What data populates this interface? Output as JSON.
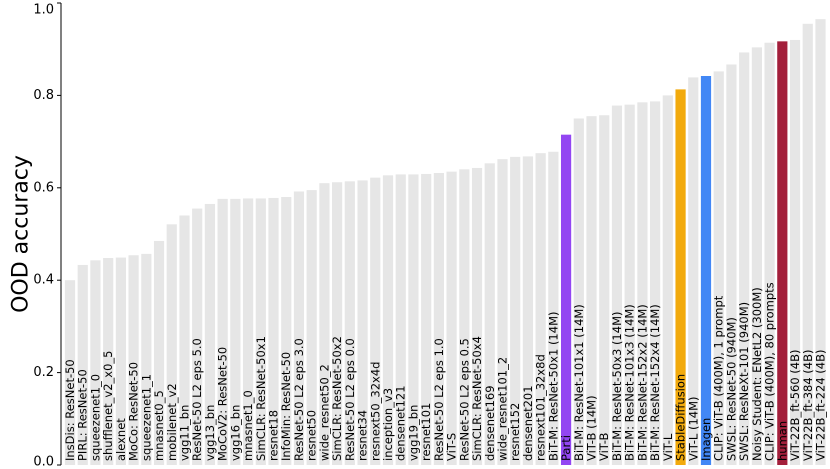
{
  "chart_data": {
    "type": "bar",
    "title": "",
    "xlabel": "",
    "ylabel": "OOD accuracy",
    "ylim": [
      0.0,
      1.0
    ],
    "yticks": [
      "0.0",
      "0.2",
      "0.4",
      "0.6",
      "0.8",
      "1.0"
    ],
    "grid": false,
    "legend": "none",
    "default_color": "#e6e6e6",
    "highlight_colors": {
      "Parti": "#9346f2",
      "StableDiffusion": "#f2aa0c",
      "Imagen": "#4287f5",
      "human": "#a31f3b"
    },
    "categories": [
      "InsDis: ResNet-50",
      "PIRL: ResNet-50",
      "squeezenet1_0",
      "shufflenet_v2_x0_5",
      "alexnet",
      "MoCo: ResNet-50",
      "squeezenet1_1",
      "mnasnet0_5",
      "mobilenet_v2",
      "vgg11_bn",
      "ResNet-50 L2 eps 5.0",
      "vgg13_bn",
      "MoCoV2: ResNet-50",
      "vgg16_bn",
      "mnasnet1_0",
      "SimCLR: ResNet-50x1",
      "resnet18",
      "InfoMin: ResNet-50",
      "ResNet-50 L2 eps 3.0",
      "resnet50",
      "wide_resnet50_2",
      "SimCLR: ResNet-50x2",
      "ResNet-50 L2 eps 0.0",
      "resnet34",
      "resnext50_32x4d",
      "inception_v3",
      "densenet121",
      "vgg19_bn",
      "resnet101",
      "ResNet-50 L2 eps 1.0",
      "ViT-S",
      "ResNet-50 L2 eps 0.5",
      "SimCLR: ResNet-50x4",
      "densenet169",
      "wide_resnet101_2",
      "resnet152",
      "densenet201",
      "resnext101_32x8d",
      "BiT-M: ResNet-50x1 (14M)",
      "Parti",
      "BiT-M: ResNet-101x1 (14M)",
      "ViT-B (14M)",
      "ViT-B",
      "BiT-M: ResNet-50x3 (14M)",
      "BiT-M: ResNet-101x3 (14M)",
      "BiT-M: ResNet-152x2 (14M)",
      "BiT-M: ResNet-152x4 (14M)",
      "ViT-L",
      "StableDiffusion",
      "ViT-L (14M)",
      "Imagen",
      "CLIP: ViT-B (400M), 1 prompt",
      "SWSL: ResNet-50 (940M)",
      "SWSL: ResNeXt-101 (940M)",
      "Noisy Student: ENetL2 (300M)",
      "CLIP: ViT-B (400M), 80 prompts",
      "human",
      "ViT-22B_ft-560 (4B)",
      "ViT-22B_ft-384 (4B)",
      "ViT-22B_ft-224 (4B)"
    ],
    "values": [
      0.4,
      0.433,
      0.443,
      0.448,
      0.449,
      0.454,
      0.457,
      0.485,
      0.521,
      0.54,
      0.555,
      0.565,
      0.576,
      0.576,
      0.577,
      0.577,
      0.578,
      0.58,
      0.592,
      0.595,
      0.61,
      0.612,
      0.614,
      0.616,
      0.622,
      0.627,
      0.629,
      0.629,
      0.63,
      0.632,
      0.635,
      0.64,
      0.643,
      0.653,
      0.662,
      0.667,
      0.668,
      0.675,
      0.678,
      0.715,
      0.75,
      0.755,
      0.757,
      0.778,
      0.78,
      0.785,
      0.787,
      0.8,
      0.813,
      0.839,
      0.842,
      0.852,
      0.867,
      0.893,
      0.904,
      0.914,
      0.917,
      0.92,
      0.955,
      0.965
    ]
  }
}
